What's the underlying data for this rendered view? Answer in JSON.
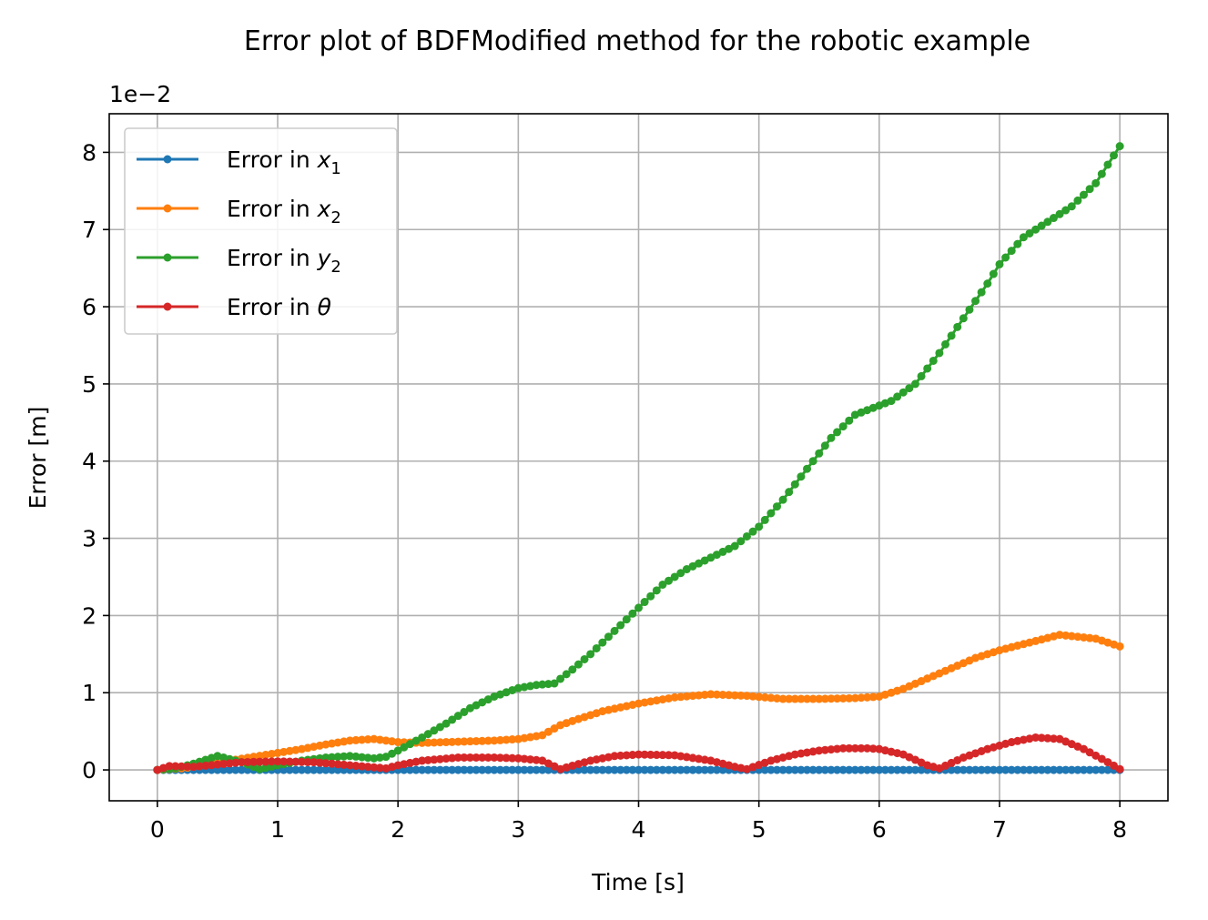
{
  "chart_data": {
    "type": "line",
    "title": "Error plot of BDFModified method for the robotic example",
    "xlabel": "Time [s]",
    "ylabel": "Error [m]",
    "y_offset_label": "1e−2",
    "xlim": [
      -0.4,
      8.4
    ],
    "ylim": [
      -0.4,
      8.5
    ],
    "y_unit_note": "values in units of 1e-2 m",
    "xticks": [
      0,
      1,
      2,
      3,
      4,
      5,
      6,
      7,
      8
    ],
    "yticks": [
      0,
      1,
      2,
      3,
      4,
      5,
      6,
      7,
      8
    ],
    "grid": true,
    "legend_position": "top-left",
    "series": [
      {
        "name": "Error in x1",
        "label_main": "Error in ",
        "label_var": "x",
        "label_sub": "1",
        "color": "#1f77b4",
        "x": [
          0,
          2,
          4,
          6,
          8
        ],
        "y": [
          0,
          0,
          0,
          0,
          0
        ]
      },
      {
        "name": "Error in x2",
        "label_main": "Error in ",
        "label_var": "x",
        "label_sub": "2",
        "color": "#ff7f0e",
        "x": [
          0,
          0.2,
          0.4,
          0.6,
          0.8,
          1.0,
          1.2,
          1.4,
          1.6,
          1.8,
          2.0,
          2.2,
          2.4,
          2.6,
          2.8,
          3.0,
          3.2,
          3.35,
          3.5,
          3.7,
          4.0,
          4.3,
          4.6,
          4.9,
          5.2,
          5.5,
          5.8,
          6.0,
          6.2,
          6.5,
          6.8,
          7.0,
          7.2,
          7.5,
          7.8,
          8.0
        ],
        "y": [
          0,
          0.02,
          0.06,
          0.12,
          0.17,
          0.22,
          0.27,
          0.33,
          0.38,
          0.4,
          0.36,
          0.35,
          0.36,
          0.37,
          0.38,
          0.4,
          0.45,
          0.58,
          0.66,
          0.76,
          0.86,
          0.94,
          0.98,
          0.96,
          0.92,
          0.92,
          0.93,
          0.95,
          1.05,
          1.25,
          1.45,
          1.55,
          1.63,
          1.75,
          1.7,
          1.6
        ]
      },
      {
        "name": "Error in y2",
        "label_main": "Error in ",
        "label_var": "y",
        "label_sub": "2",
        "color": "#2ca02c",
        "x": [
          0,
          0.15,
          0.3,
          0.5,
          0.7,
          0.85,
          1.0,
          1.2,
          1.4,
          1.6,
          1.8,
          1.9,
          2.0,
          2.2,
          2.4,
          2.6,
          2.8,
          3.0,
          3.15,
          3.3,
          3.45,
          3.6,
          3.8,
          4.0,
          4.2,
          4.4,
          4.6,
          4.8,
          5.0,
          5.2,
          5.4,
          5.6,
          5.8,
          6.0,
          6.1,
          6.3,
          6.5,
          6.7,
          6.9,
          7.0,
          7.2,
          7.4,
          7.6,
          7.8,
          8.0
        ],
        "y": [
          0,
          0.02,
          0.08,
          0.18,
          0.1,
          0.01,
          0.06,
          0.12,
          0.16,
          0.18,
          0.15,
          0.17,
          0.25,
          0.42,
          0.6,
          0.8,
          0.95,
          1.06,
          1.1,
          1.12,
          1.3,
          1.5,
          1.8,
          2.1,
          2.4,
          2.6,
          2.75,
          2.9,
          3.15,
          3.5,
          3.9,
          4.3,
          4.6,
          4.72,
          4.78,
          5.0,
          5.4,
          5.85,
          6.3,
          6.55,
          6.9,
          7.1,
          7.3,
          7.6,
          8.08
        ]
      },
      {
        "name": "Error in θ",
        "label_main": "Error in ",
        "label_var": "θ",
        "label_sub": "",
        "color": "#d62728",
        "x": [
          0,
          0.1,
          0.3,
          0.5,
          0.7,
          1.0,
          1.3,
          1.6,
          1.9,
          2.0,
          2.2,
          2.5,
          2.8,
          3.0,
          3.2,
          3.35,
          3.6,
          3.8,
          4.0,
          4.3,
          4.6,
          4.8,
          4.9,
          5.1,
          5.3,
          5.5,
          5.7,
          5.9,
          6.0,
          6.2,
          6.4,
          6.5,
          6.7,
          6.9,
          7.1,
          7.3,
          7.5,
          7.7,
          7.9,
          8.0
        ],
        "y": [
          0,
          0.05,
          0.04,
          0.07,
          0.1,
          0.11,
          0.1,
          0.06,
          0.02,
          0.06,
          0.12,
          0.16,
          0.16,
          0.15,
          0.12,
          0.01,
          0.12,
          0.18,
          0.2,
          0.19,
          0.12,
          0.04,
          0.01,
          0.12,
          0.2,
          0.25,
          0.28,
          0.28,
          0.27,
          0.2,
          0.06,
          0.02,
          0.16,
          0.27,
          0.36,
          0.42,
          0.4,
          0.27,
          0.1,
          0.01
        ]
      }
    ]
  }
}
